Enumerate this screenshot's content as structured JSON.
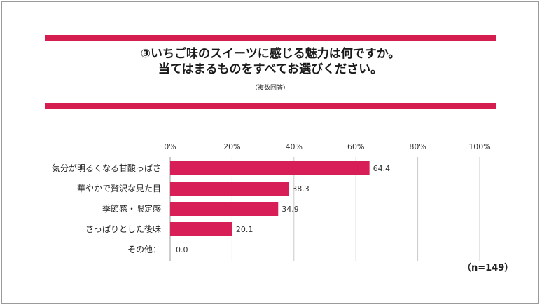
{
  "header": {
    "title_line1": "③いちご味のスイーツに感じる魅力は何ですか。",
    "title_line2": "当てはまるものをすべてお選びください。",
    "subtitle": "（複数回答）"
  },
  "sample_note": "（n=149）",
  "colors": {
    "accent": "#d51e50",
    "bar": "#d81e56",
    "grid": "#c9c9c9"
  },
  "chart_data": {
    "type": "bar",
    "orientation": "horizontal",
    "categories": [
      "気分が明るくなる甘酸っぱさ",
      "華やかで贅沢な見た目",
      "季節感・限定感",
      "さっぱりとした後味",
      "その他："
    ],
    "values": [
      64.4,
      38.3,
      34.9,
      20.1,
      0.0
    ],
    "value_labels": [
      "64.4",
      "38.3",
      "34.9",
      "20.1",
      "0.0"
    ],
    "xlim": [
      0,
      100
    ],
    "xticks": [
      0,
      20,
      40,
      60,
      80,
      100
    ],
    "xtick_labels": [
      "0%",
      "20%",
      "40%",
      "60%",
      "80%",
      "100%"
    ],
    "grid": true,
    "title": "",
    "xlabel": "",
    "ylabel": ""
  }
}
